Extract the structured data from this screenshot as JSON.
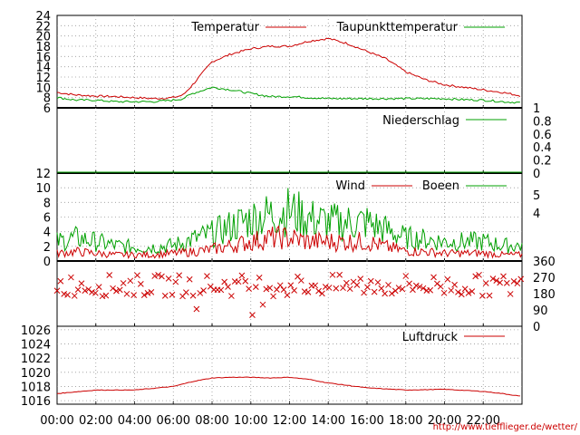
{
  "credit": "http://www.tiefflieger.de/wetter/",
  "x_ticks": [
    "00:00",
    "02:00",
    "04:00",
    "06:00",
    "08:00",
    "10:00",
    "12:00",
    "14:00",
    "16:00",
    "18:00",
    "20:00",
    "22:00"
  ],
  "chart_data": [
    {
      "type": "line",
      "ylim": [
        6,
        24
      ],
      "yticks": [
        6,
        8,
        10,
        12,
        14,
        16,
        18,
        20,
        22,
        24
      ],
      "x_hours": [
        0,
        1,
        2,
        3,
        4,
        5,
        6,
        6.5,
        7,
        8,
        9,
        10,
        11,
        12,
        13,
        14,
        15,
        16,
        17,
        18,
        19,
        20,
        21,
        22,
        23,
        24
      ],
      "series": [
        {
          "name": "Temperatur",
          "color": "#cc0000",
          "values": [
            9,
            8.5,
            8.3,
            8.2,
            8,
            7.8,
            8,
            8.5,
            10.5,
            15,
            16.5,
            17.5,
            18,
            18,
            19,
            19.5,
            18.5,
            17,
            15.5,
            13,
            11.5,
            10.5,
            10,
            9.5,
            9,
            8.3
          ]
        },
        {
          "name": "Taupunkttemperatur",
          "color": "#00a000",
          "values": [
            8,
            7.5,
            7.5,
            7.2,
            7.2,
            7.2,
            7.5,
            7.8,
            8.8,
            10,
            9.5,
            8.8,
            8.2,
            8.2,
            8,
            7.8,
            7.8,
            7.8,
            7.8,
            7.8,
            7.8,
            7.8,
            7.6,
            7.5,
            7.2,
            7
          ]
        }
      ]
    },
    {
      "type": "line",
      "ylim": [
        0,
        1
      ],
      "yticks": [
        "0",
        "0.2",
        "0.4",
        "0.6",
        "0.8",
        "1"
      ],
      "series": [
        {
          "name": "Niederschlag",
          "color": "#00a000",
          "values": [
            0,
            0
          ]
        }
      ]
    },
    {
      "type": "line",
      "ylim": [
        0,
        12
      ],
      "yticks": [
        0,
        2,
        4,
        6,
        8,
        10,
        12
      ],
      "right_ticks": [
        "4",
        "5"
      ],
      "x_hours": [
        0,
        1,
        2,
        3,
        4,
        5,
        6,
        7,
        8,
        9,
        10,
        11,
        12,
        13,
        14,
        15,
        16,
        17,
        18,
        19,
        20,
        21,
        22,
        23,
        24
      ],
      "series": [
        {
          "name": "Wind",
          "color": "#cc0000",
          "values": [
            1,
            1.2,
            1,
            0.8,
            0.8,
            0.8,
            1,
            1.2,
            1.5,
            2,
            2.5,
            3,
            3,
            2.5,
            2.5,
            2.5,
            2.5,
            1.8,
            1.3,
            1.2,
            1,
            1,
            1,
            0.8,
            0.8
          ]
        },
        {
          "name": "Boeen",
          "color": "#00a000",
          "values": [
            2.5,
            3,
            2.5,
            2,
            1.8,
            1.8,
            2,
            2.8,
            3.5,
            4.5,
            5.5,
            6,
            6.5,
            5.5,
            5,
            5,
            5,
            4,
            3,
            2.8,
            2.5,
            2.5,
            2.5,
            2,
            2
          ]
        }
      ]
    },
    {
      "type": "scatter",
      "ylim": [
        0,
        360
      ],
      "yticks": [
        0,
        90,
        180,
        270,
        360
      ],
      "color": "#cc0000",
      "marker": "x",
      "typical_direction": 225
    },
    {
      "type": "line",
      "ylim": [
        1015.5,
        1026.5
      ],
      "yticks": [
        1016,
        1018,
        1020,
        1022,
        1024,
        1026
      ],
      "x_hours": [
        0,
        2,
        4,
        6,
        7,
        8,
        9,
        10,
        11,
        12,
        13,
        14,
        16,
        18,
        20,
        22,
        23,
        24
      ],
      "series": [
        {
          "name": "Luftdruck",
          "color": "#cc0000",
          "values": [
            1017,
            1017.5,
            1017.5,
            1018,
            1018.7,
            1019.2,
            1019.3,
            1019.3,
            1019.2,
            1019.3,
            1019,
            1018.5,
            1017.8,
            1017.5,
            1017.6,
            1017.3,
            1017,
            1016.6
          ]
        }
      ]
    }
  ]
}
